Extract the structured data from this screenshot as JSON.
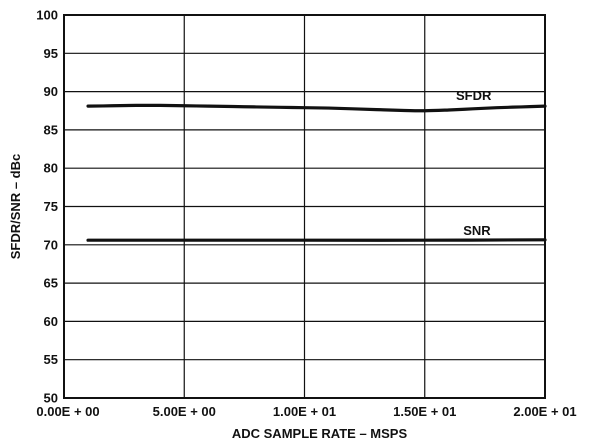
{
  "chart_data": {
    "type": "line",
    "xlabel": "ADC SAMPLE RATE – MSPS",
    "ylabel": "SFDR/SNR – dBc",
    "xlim": [
      0,
      20
    ],
    "ylim": [
      50,
      100
    ],
    "x_ticks": [
      {
        "value": 0,
        "label": "0.00E + 00"
      },
      {
        "value": 5,
        "label": "5.00E + 00"
      },
      {
        "value": 10,
        "label": "1.00E + 01"
      },
      {
        "value": 15,
        "label": "1.50E + 01"
      },
      {
        "value": 20,
        "label": "2.00E + 01"
      }
    ],
    "y_ticks": [
      {
        "value": 50,
        "label": "50"
      },
      {
        "value": 55,
        "label": "55"
      },
      {
        "value": 60,
        "label": "60"
      },
      {
        "value": 65,
        "label": "65"
      },
      {
        "value": 70,
        "label": "70"
      },
      {
        "value": 75,
        "label": "75"
      },
      {
        "value": 80,
        "label": "80"
      },
      {
        "value": 85,
        "label": "85"
      },
      {
        "value": 90,
        "label": "90"
      },
      {
        "value": 95,
        "label": "95"
      },
      {
        "value": 100,
        "label": "100"
      }
    ],
    "grid": true,
    "series": [
      {
        "name": "SFDR",
        "x": [
          1,
          2,
          3,
          4,
          5,
          6,
          7,
          8,
          9,
          10,
          11,
          12,
          13,
          14,
          15,
          16,
          17,
          18,
          19,
          20
        ],
        "y": [
          88.1,
          88.15,
          88.2,
          88.2,
          88.15,
          88.1,
          88.05,
          88.0,
          87.95,
          87.9,
          87.85,
          87.75,
          87.65,
          87.55,
          87.5,
          87.6,
          87.75,
          87.9,
          88.0,
          88.1
        ]
      },
      {
        "name": "SNR",
        "x": [
          1,
          5,
          10,
          15,
          20
        ],
        "y": [
          70.6,
          70.6,
          70.6,
          70.6,
          70.65
        ]
      }
    ],
    "series_label_anchor": [
      {
        "name": "SFDR",
        "x": 16.3,
        "y": 88.9
      },
      {
        "name": "SNR",
        "x": 16.6,
        "y": 71.3
      }
    ]
  }
}
